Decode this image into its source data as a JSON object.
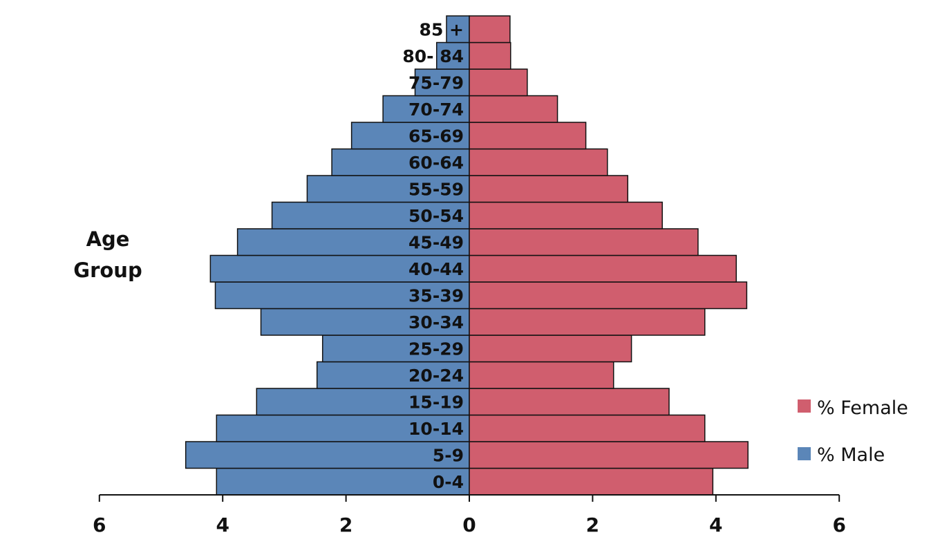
{
  "chart_data": {
    "type": "bar",
    "orientation": "horizontal",
    "variant": "population-pyramid",
    "categories": [
      "0-4",
      "5-9",
      "10-14",
      "15-19",
      "20-24",
      "25-29",
      "30-34",
      "35-39",
      "40-44",
      "45-49",
      "50-54",
      "55-59",
      "60-64",
      "65-69",
      "70-74",
      "75-79",
      "80- 84",
      "85 +"
    ],
    "series": [
      {
        "name": "% Male",
        "color": "#5b86b8",
        "side": "left",
        "values": [
          4.1,
          4.6,
          4.1,
          3.45,
          2.47,
          2.38,
          3.38,
          4.12,
          4.2,
          3.76,
          3.2,
          2.63,
          2.23,
          1.91,
          1.4,
          0.88,
          0.53,
          0.37
        ]
      },
      {
        "name": "% Female",
        "color": "#d05e6e",
        "side": "right",
        "values": [
          3.95,
          4.52,
          3.82,
          3.24,
          2.34,
          2.63,
          3.82,
          4.5,
          4.33,
          3.71,
          3.13,
          2.57,
          2.24,
          1.89,
          1.43,
          0.94,
          0.67,
          0.66
        ]
      }
    ],
    "ylabel_lines": [
      "Age",
      "Group"
    ],
    "xlabel": "",
    "xlim": [
      -6,
      6
    ],
    "x_ticks": [
      -6,
      -4,
      -2,
      0,
      2,
      4,
      6
    ],
    "x_tick_labels": [
      "6",
      "4",
      "2",
      "0",
      "2",
      "4",
      "6"
    ],
    "grid": false,
    "legend": {
      "placement": "right",
      "entries": [
        "% Female",
        "% Male"
      ]
    }
  }
}
